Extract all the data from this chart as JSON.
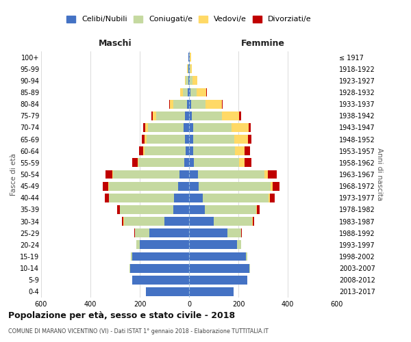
{
  "age_groups": [
    "100+",
    "95-99",
    "90-94",
    "85-89",
    "80-84",
    "75-79",
    "70-74",
    "65-69",
    "60-64",
    "55-59",
    "50-54",
    "45-49",
    "40-44",
    "35-39",
    "30-34",
    "25-29",
    "20-24",
    "15-19",
    "10-14",
    "5-9",
    "0-4"
  ],
  "birth_years": [
    "≤ 1917",
    "1918-1922",
    "1923-1927",
    "1928-1932",
    "1933-1937",
    "1938-1942",
    "1943-1947",
    "1948-1952",
    "1953-1957",
    "1958-1962",
    "1963-1967",
    "1968-1972",
    "1973-1977",
    "1978-1982",
    "1983-1987",
    "1988-1992",
    "1993-1997",
    "1998-2002",
    "2003-2007",
    "2008-2012",
    "2013-2017"
  ],
  "males": {
    "celibi": [
      2,
      2,
      3,
      5,
      8,
      18,
      22,
      18,
      15,
      20,
      38,
      45,
      60,
      65,
      100,
      160,
      200,
      230,
      240,
      230,
      175
    ],
    "coniugati": [
      1,
      3,
      10,
      20,
      55,
      115,
      145,
      155,
      165,
      185,
      270,
      280,
      265,
      215,
      165,
      60,
      15,
      5,
      3,
      1,
      0
    ],
    "vedovi": [
      1,
      2,
      5,
      10,
      15,
      15,
      12,
      8,
      5,
      4,
      3,
      2,
      1,
      1,
      1,
      0,
      0,
      0,
      0,
      0,
      0
    ],
    "divorziati": [
      0,
      0,
      0,
      0,
      2,
      5,
      8,
      10,
      18,
      22,
      28,
      22,
      15,
      10,
      5,
      2,
      0,
      0,
      0,
      0,
      0
    ]
  },
  "females": {
    "nubili": [
      2,
      2,
      3,
      5,
      8,
      12,
      18,
      18,
      18,
      20,
      35,
      40,
      55,
      65,
      100,
      155,
      195,
      230,
      245,
      235,
      180
    ],
    "coniugate": [
      2,
      4,
      12,
      25,
      60,
      120,
      155,
      165,
      168,
      182,
      270,
      290,
      268,
      208,
      155,
      55,
      15,
      5,
      3,
      1,
      0
    ],
    "vedove": [
      3,
      6,
      18,
      40,
      65,
      70,
      68,
      55,
      38,
      22,
      15,
      10,
      5,
      3,
      2,
      1,
      0,
      0,
      0,
      0,
      0
    ],
    "divorziate": [
      0,
      0,
      0,
      2,
      3,
      8,
      10,
      15,
      22,
      28,
      35,
      28,
      18,
      10,
      6,
      2,
      0,
      0,
      0,
      0,
      0
    ]
  },
  "colors": {
    "celibi": "#4472C4",
    "coniugati": "#c5d9a0",
    "vedovi": "#FFD966",
    "divorziati": "#C00000"
  },
  "title": "Popolazione per età, sesso e stato civile - 2018",
  "subtitle": "COMUNE DI MARANO VICENTINO (VI) - Dati ISTAT 1° gennaio 2018 - Elaborazione TUTTITALIA.IT",
  "xlabel_left": "Maschi",
  "xlabel_right": "Femmine",
  "ylabel_left": "Fasce di età",
  "ylabel_right": "Anni di nascita",
  "xlim": 600,
  "legend_labels": [
    "Celibi/Nubili",
    "Coniugati/e",
    "Vedovi/e",
    "Divorziati/e"
  ],
  "bg_color": "#ffffff",
  "grid_color": "#cccccc"
}
